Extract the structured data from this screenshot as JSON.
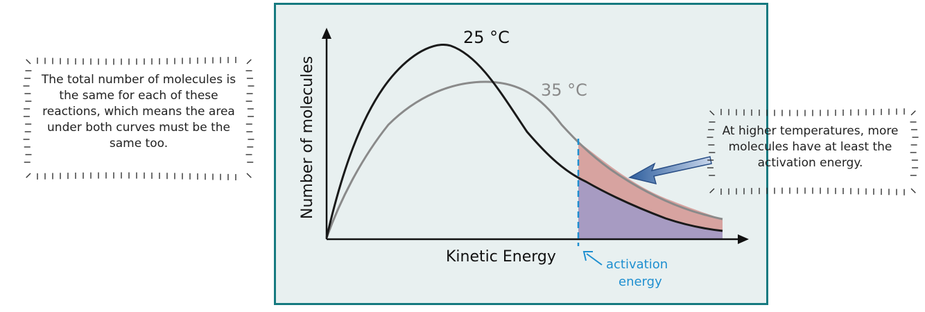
{
  "notes": {
    "left": "The total number of molecules is the same for each of these reactions, which means the area under both curves must be the same too.",
    "right": "At higher temperatures, more molecules have at least the activation energy."
  },
  "graph": {
    "xlabel": "Kinetic Energy",
    "ylabel": "Number of molecules",
    "curve_25_label": "25 °C",
    "curve_35_label": "35 °C",
    "activation_line1": "activation",
    "activation_line2": "energy"
  },
  "colors": {
    "frame": "#167a80",
    "panel": "#e8f0f0",
    "curve_25": "#1a1a1a",
    "curve_35": "#8a8a8a",
    "activation": "#1e8fd0",
    "area_extra": "#d7a3a0",
    "area_common": "#a79bc2",
    "arrow": "#2f5f9e"
  }
}
